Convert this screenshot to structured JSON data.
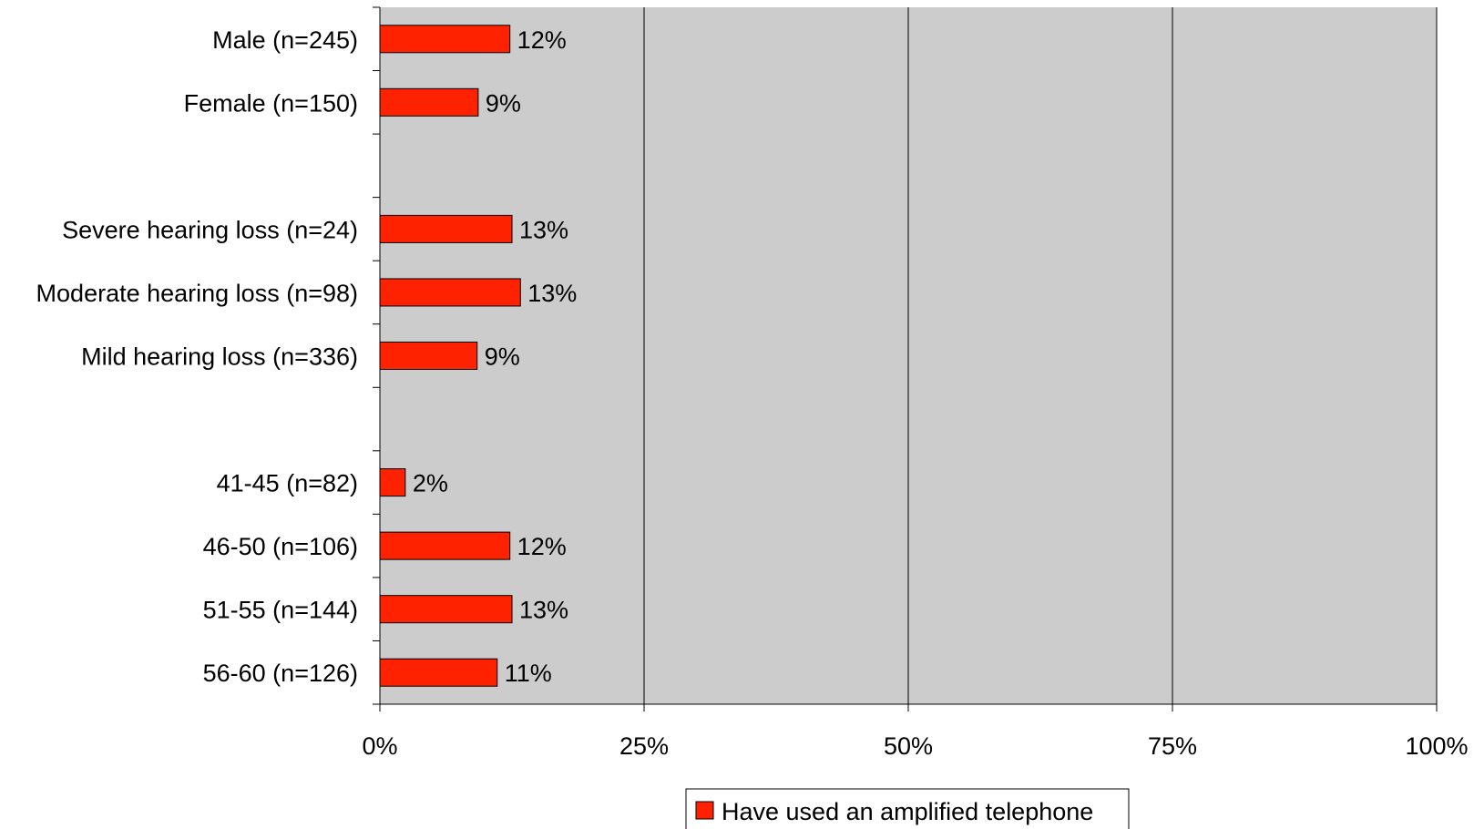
{
  "chart_data": {
    "type": "bar",
    "orientation": "horizontal",
    "categories": [
      "Male (n=245)",
      "Female (n=150)",
      "",
      "Severe hearing loss (n=24)",
      "Moderate hearing loss (n=98)",
      "Mild hearing loss (n=336)",
      "",
      "41-45 (n=82)",
      "46-50 (n=106)",
      "51-55 (n=144)",
      "56-60 (n=126)"
    ],
    "series": [
      {
        "name": "Have used an amplified telephone",
        "values": [
          12.3,
          9.3,
          null,
          12.5,
          13.3,
          9.2,
          null,
          2.4,
          12.3,
          12.5,
          11.1
        ],
        "data_labels": [
          "12%",
          "9%",
          "",
          "13%",
          "13%",
          "9%",
          "",
          "2%",
          "12%",
          "13%",
          "11%"
        ]
      }
    ],
    "xlim": [
      0,
      100
    ],
    "xticks": [
      0,
      25,
      50,
      75,
      100
    ],
    "xtick_labels": [
      "0%",
      "25%",
      "50%",
      "75%",
      "100%"
    ],
    "title": "",
    "xlabel": "",
    "ylabel": "",
    "grid": "vertical",
    "legend_position": "bottom",
    "colors": {
      "bar": "#ff2200",
      "plot_background": "#cccccc",
      "gridline": "#000000"
    }
  }
}
